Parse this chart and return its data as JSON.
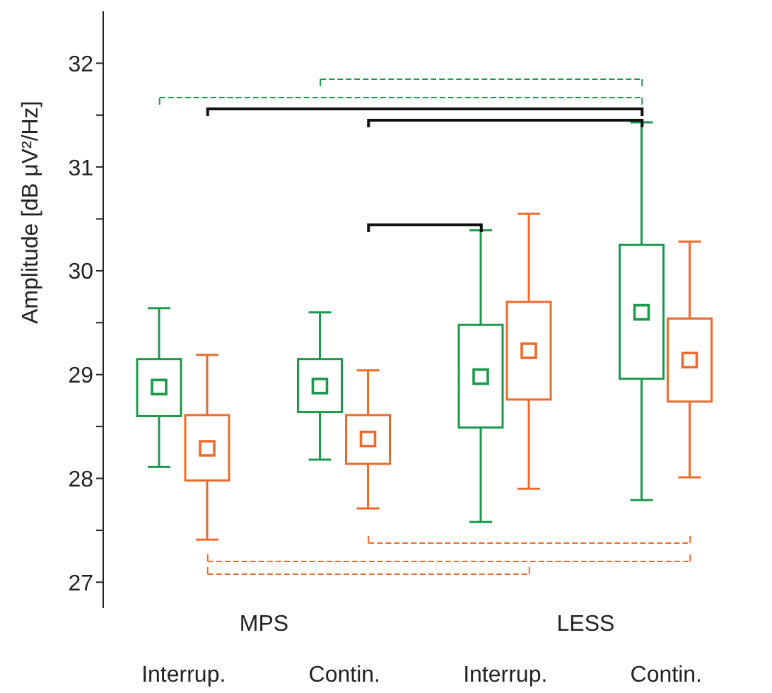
{
  "chart_data": {
    "type": "box",
    "ylabel": "Amplitude [dB μV²/Hz]",
    "categories": [
      "Interrup.",
      "Contin.",
      "Interrup.",
      "Contin."
    ],
    "annotations": [
      "MPS",
      "LESS"
    ],
    "ylim": [
      26.75,
      32.5
    ],
    "yticks": [
      27,
      {
        "value": 27.5,
        "label": null
      },
      28,
      {
        "value": 28.5,
        "label": null
      },
      29,
      {
        "value": 29.5,
        "label": null
      },
      30,
      {
        "value": 30.5,
        "label": null
      },
      31,
      {
        "value": 31.5,
        "label": null
      },
      32
    ],
    "grid": false,
    "legend": false,
    "marker": "square",
    "series": [
      {
        "color": "#1b9a4c",
        "boxes": [
          {
            "low": 28.11,
            "q1": 28.6,
            "q3": 29.15,
            "high": 29.64,
            "mean": 28.88
          },
          {
            "low": 28.18,
            "q1": 28.64,
            "q3": 29.15,
            "high": 29.6,
            "mean": 28.89
          },
          {
            "low": 27.58,
            "q1": 28.49,
            "q3": 29.48,
            "high": 30.39,
            "mean": 28.98
          },
          {
            "low": 27.79,
            "q1": 28.96,
            "q3": 30.25,
            "high": 31.43,
            "mean": 29.6
          }
        ]
      },
      {
        "color": "#ee6a2a",
        "boxes": [
          {
            "low": 27.41,
            "q1": 27.98,
            "q3": 28.61,
            "high": 29.19,
            "mean": 28.29
          },
          {
            "low": 27.71,
            "q1": 28.14,
            "q3": 28.61,
            "high": 29.04,
            "mean": 28.38
          },
          {
            "low": 27.9,
            "q1": 28.76,
            "q3": 29.7,
            "high": 30.55,
            "mean": 29.23
          },
          {
            "low": 28.01,
            "q1": 28.74,
            "q3": 29.54,
            "high": 30.28,
            "mean": 29.14
          }
        ]
      }
    ]
  }
}
